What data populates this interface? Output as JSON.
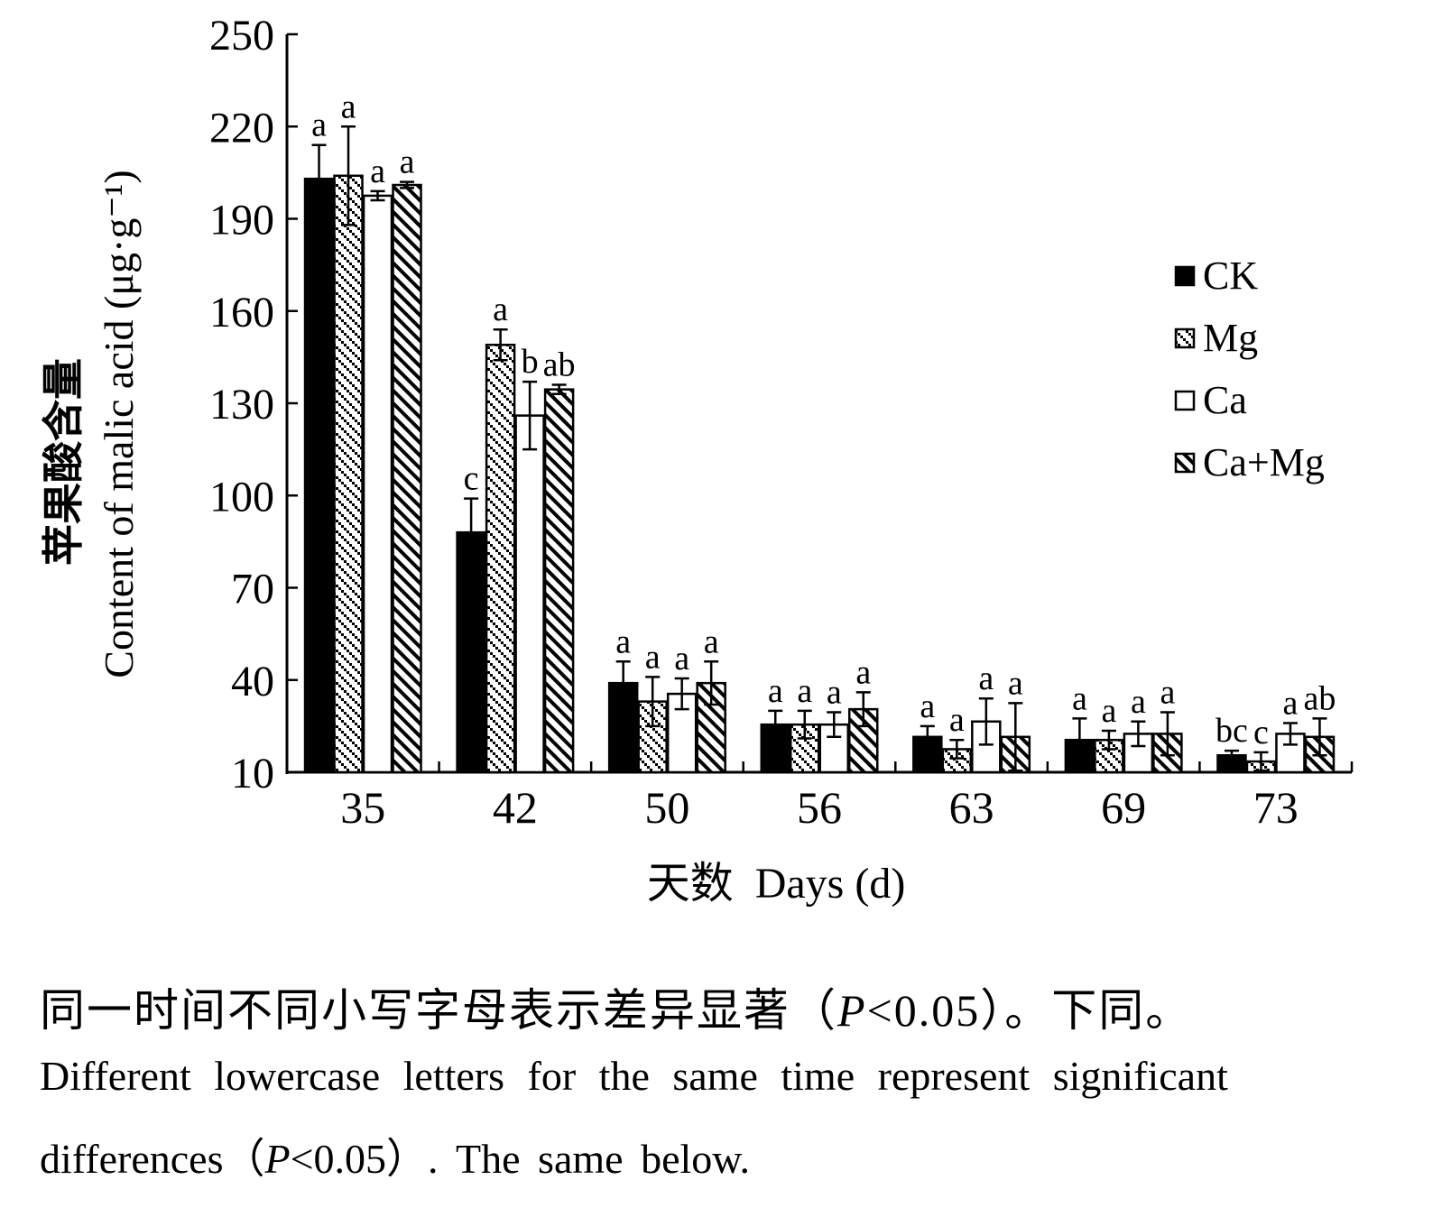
{
  "chart_data": {
    "type": "bar",
    "xlabel": "天数  Days (d)",
    "ylabel_cn": "苹果酸含量",
    "ylabel_en": "Content of malic acid (μg·g⁻¹)",
    "categories": [
      "35",
      "42",
      "50",
      "56",
      "63",
      "69",
      "73"
    ],
    "ylim": [
      10,
      250
    ],
    "yticks": [
      10,
      40,
      70,
      100,
      130,
      160,
      190,
      220,
      250
    ],
    "legend_position": "right",
    "series": [
      {
        "name": "CK",
        "pattern": "solid",
        "values": [
          203,
          88,
          39,
          25.5,
          21.5,
          20.5,
          15.5
        ],
        "errors": [
          11,
          11,
          7,
          4.5,
          3.5,
          7,
          1.5
        ],
        "letters": [
          "a",
          "c",
          "a",
          "a",
          "a",
          "a",
          "bc"
        ]
      },
      {
        "name": "Mg",
        "pattern": "dotted-diagonal",
        "values": [
          204,
          149,
          33,
          25.5,
          17.5,
          20.5,
          13.5
        ],
        "errors": [
          16,
          5,
          8,
          4.5,
          3,
          3,
          3
        ],
        "letters": [
          "a",
          "a",
          "a",
          "a",
          "a",
          "a",
          "c"
        ]
      },
      {
        "name": "Ca",
        "pattern": "open",
        "values": [
          197.5,
          126,
          35.5,
          25.5,
          26.5,
          22.5,
          22.5
        ],
        "errors": [
          1.5,
          11,
          5,
          4,
          7.5,
          4,
          3.5
        ],
        "letters": [
          "a",
          "b",
          "a",
          "a",
          "a",
          "a",
          "a"
        ]
      },
      {
        "name": "Ca+Mg",
        "pattern": "hatch",
        "values": [
          201,
          134.5,
          39,
          30.5,
          21.5,
          22.5,
          21.5
        ],
        "errors": [
          1,
          1.5,
          7,
          5.5,
          11,
          7,
          6
        ],
        "letters": [
          "a",
          "ab",
          "a",
          "a",
          "a",
          "a",
          "ab"
        ]
      }
    ]
  },
  "note": {
    "cn_before": "同一时间不同小写字母表示差异显著（",
    "cn_p": "P",
    "cn_after": "<0.05）。下同。",
    "en_line1": "Different lowercase letters for the same time represent significant",
    "en_line2_before": "differences（",
    "en_p": "P",
    "en_line2_after": "<0.05）. The same below."
  }
}
